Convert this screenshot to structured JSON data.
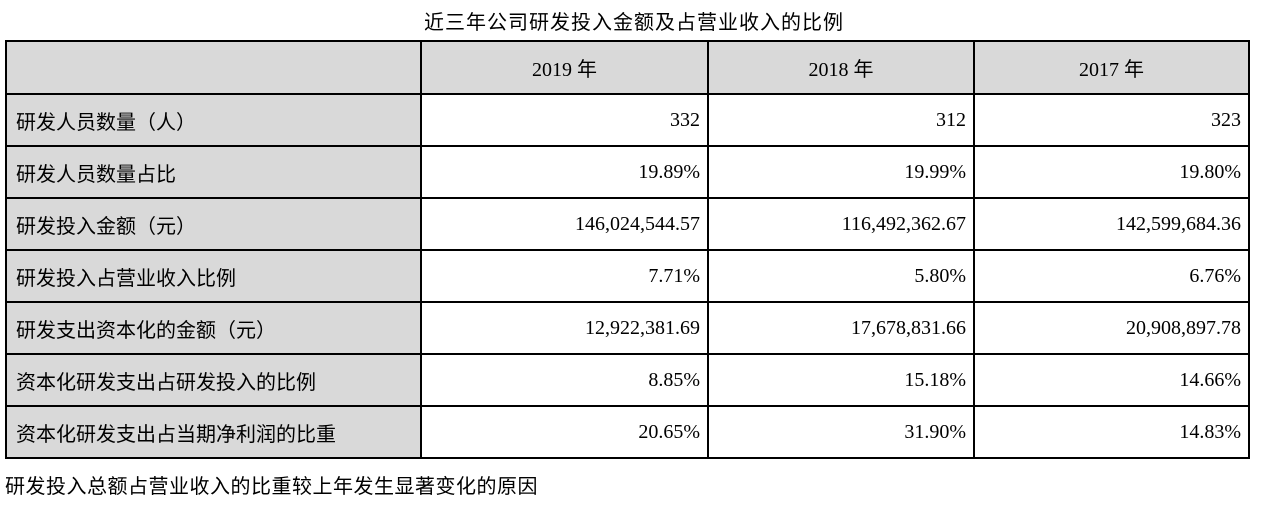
{
  "title": "近三年公司研发投入金额及占营业收入的比例",
  "footer": "研发投入总额占营业收入的比重较上年发生显著变化的原因",
  "colors": {
    "header_bg": "#d9d9d9",
    "border": "#000000",
    "text": "#000000"
  },
  "table": {
    "columns": [
      "",
      "2019 年",
      "2018 年",
      "2017 年"
    ],
    "rows": [
      {
        "label": "研发人员数量（人）",
        "values": [
          "332",
          "312",
          "323"
        ]
      },
      {
        "label": "研发人员数量占比",
        "values": [
          "19.89%",
          "19.99%",
          "19.80%"
        ]
      },
      {
        "label": "研发投入金额（元）",
        "values": [
          "146,024,544.57",
          "116,492,362.67",
          "142,599,684.36"
        ]
      },
      {
        "label": "研发投入占营业收入比例",
        "values": [
          "7.71%",
          "5.80%",
          "6.76%"
        ]
      },
      {
        "label": "研发支出资本化的金额（元）",
        "values": [
          "12,922,381.69",
          "17,678,831.66",
          "20,908,897.78"
        ]
      },
      {
        "label": "资本化研发支出占研发投入的比例",
        "values": [
          "8.85%",
          "15.18%",
          "14.66%"
        ]
      },
      {
        "label": "资本化研发支出占当期净利润的比重",
        "values": [
          "20.65%",
          "31.90%",
          "14.83%"
        ]
      }
    ]
  }
}
